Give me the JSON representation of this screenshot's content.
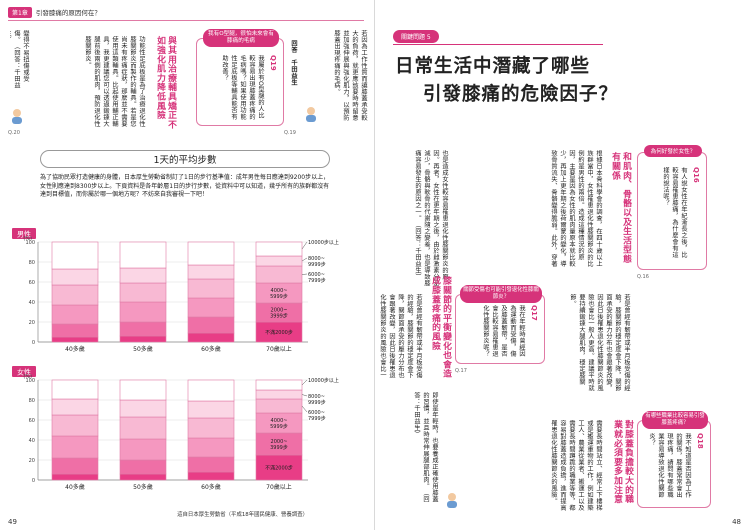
{
  "left_page": {
    "header_chapter": "第1章",
    "header_title": "引發膝痛的原因何在？",
    "page_number": "49",
    "tag_top": "Q.19",
    "tag_bottom": "Q.20",
    "col_top_right": "若因為工作性質而讓膝蓋承受較大的負荷，就更應該要時時留意並加強伸展與強化肌力，以預防膝蓋出現疼痛的毛病。",
    "col_top_left": "變得不易扭傷或受傷。（回答：千田益生）",
    "answerer": "回答　千田益生",
    "q19_box": {
      "bubble": "我有O型腿，很怕未來會有膝痛的毛病",
      "q_number": "Q19",
      "question": "我屬於有O型腿的人比較容易出現膝蓋疼痛的毛病嗎？如果使用功能性足底板等輔具能否有助改善？"
    },
    "reply_heading": "與其用治療輔具矯正不如強化肌力降低風險",
    "reply_body": "功能性足底板是為了治療退化性膝關節炎而製作的輔具。若是您尚未有疼痛症狀，那麼並不需要使用這類輔具。比起使用輔正輔具，我更建議您可以透過鍛鍊大腿前後兩側的肌肉，預防退化性膝關節炎。",
    "chart": {
      "title": "1天的平均步數",
      "description": "為了協助民眾打造健康的身體，日本厚生勞動省制訂了1日的步行基準值：成年男性每日應達到9200步以上，女性則應達到8300步以上。下頁資料是各年齡層1日的步行步數，從資料中可以知道，幾乎所有的族群都沒有達到目標值，而你屬於哪一個地方呢？不妨來自我審視一下吧！",
      "source": "這自日本厚生勞動省（平成18年國民健康、營養調査）",
      "legend": [
        "10000步以上",
        "8000~9999步",
        "6000~7999步",
        "4000~5999步",
        "2000~3999步",
        "不滿2000步"
      ]
    },
    "chart_data": [
      {
        "type": "bar",
        "title": "男性",
        "categories": [
          "40多歲",
          "50多歲",
          "60多歲",
          "70歲以上"
        ],
        "ylim": [
          0,
          100
        ],
        "y_ticks": [
          "0",
          "20",
          "40",
          "60",
          "80",
          "100"
        ],
        "stack_order_bottom_to_top": [
          "不滿2000步",
          "2000~3999步",
          "4000~5999步",
          "6000~7999步",
          "8000~9999步",
          "10000步以上"
        ],
        "series": [
          {
            "name": "不滿2000步",
            "values": [
              5,
              6,
              9,
              20
            ]
          },
          {
            "name": "2000~3999步",
            "values": [
              13,
              14,
              16,
              19
            ]
          },
          {
            "name": "4000~5999步",
            "values": [
              19,
              20,
              19,
              20
            ]
          },
          {
            "name": "6000~7999步",
            "values": [
              20,
              19,
              19,
              17
            ]
          },
          {
            "name": "8000~9999步",
            "values": [
              16,
              15,
              14,
              10
            ]
          },
          {
            "name": "10000步以上",
            "values": [
              27,
              26,
              23,
              14
            ]
          }
        ],
        "colors": [
          "#e83d86",
          "#ef6fa6",
          "#f598c0",
          "#f8b9d3",
          "#fbd6e5",
          "#ffffff"
        ]
      },
      {
        "type": "bar",
        "title": "女性",
        "categories": [
          "40多歲",
          "50多歲",
          "60多歲",
          "70歲以上"
        ],
        "ylim": [
          0,
          100
        ],
        "y_ticks": [
          "0",
          "20",
          "40",
          "60",
          "80",
          "100"
        ],
        "stack_order_bottom_to_top": [
          "不滿2000步",
          "2000~3999步",
          "4000~5999步",
          "6000~7999步",
          "8000~9999步",
          "10000步以上"
        ],
        "series": [
          {
            "name": "不滿2000步",
            "values": [
              6,
              6,
              8,
              25
            ]
          },
          {
            "name": "2000~3999步",
            "values": [
              16,
              14,
              15,
              22
            ]
          },
          {
            "name": "4000~5999步",
            "values": [
              22,
              21,
              19,
              20
            ]
          },
          {
            "name": "6000~7999步",
            "values": [
              21,
              22,
              20,
              14
            ]
          },
          {
            "name": "8000~9999步",
            "values": [
              16,
              17,
              17,
              9
            ]
          },
          {
            "name": "10000步以上",
            "values": [
              19,
              20,
              21,
              10
            ]
          }
        ],
        "colors": [
          "#e83d86",
          "#ef6fa6",
          "#f598c0",
          "#f8b9d3",
          "#fbd6e5",
          "#ffffff"
        ]
      }
    ]
  },
  "right_page": {
    "page_number": "48",
    "tag_q16": "Q.16",
    "tag_q17": "Q.17",
    "badge": "關鍵問題 5",
    "title_line1": "日常生活中潛藏了哪些",
    "title_line2": "引發膝痛的危險因子？",
    "q16_box": {
      "bubble": "為何好發於女性？",
      "q_number": "Q16",
      "question": "有人說女性在年紀漸長之後，比較容易罹患膝痛，為什麼會有這樣的說法呢？"
    },
    "section1_heading": "和肌肉、骨骼以及生活型態有關係",
    "section1_body": "根據日本骨科學會的調查，在四十歲以上族群當中，女性罹患退化性膝關節炎的比例約是男性的兩倍。造成這種情況的原因，主要是因為女性的肌肉量原本就比較少，再加上更年期之後荷爾蒙的變化，導致骨質流失、骨骼變得脆弱。此外，穿著高跟鞋等生活習慣，也會讓膝蓋承受額外的負擔。",
    "section1_cont": "也是造成女性較容易罹患退化性膝關節炎的原因。再者，女性在更年期之後，由於雌激素分泌減少，骨骼與軟骨的代謝隨之變差，也是導致膝痛容易發生的原因之一。（回答：千田益生）",
    "q17_box": {
      "bubble": "關節受傷也可能引發退化性膝關節炎？",
      "q_number": "Q17",
      "question": "我在年輕時曾經因為運動而受傷，傷及膝蓋韌帶，是否會比較容易罹患退化性膝關節炎呢？"
    },
    "section2_heading": "膝關節的平衡變化也會造成膝蓋疼痛的風險",
    "section2_body": "若是曾經有韌帶或半月板受傷的經驗，膝關節的穩定度會下降，關節面承受的壓力分布也會跟著改變，因此日後罹患退化性膝關節炎的風險也會比一般人更高。建議平時就要持續鍛鍊大腿肌肉，穩定膝關節。",
    "q18_box": {
      "bubble": "有哪些職業比較容易引發膝蓋疼痛？",
      "q_number": "Q18",
      "question": "我不知道是否因為工作的關係，膝蓋常常會出現疼痛，請問有哪些職業容易導致退化性關節炎？"
    },
    "section3_heading": "對膝蓋負擔較大的職業就必須要多加注意",
    "section3_body": "需要長時間站立、經常上下樓梯或是搬運重物的工作，例如建築工人、農業從業者、搬運工以及需要長時間蹲跪的職業等等，都容易對膝蓋造成負擔，進而提高罹患退化性膝關節炎的風險。",
    "section3_cont": "即使是年輕時，也要養成正確使用膝蓋的習慣，並且時常伸展腿部肌肉。（回答：千田益生）"
  }
}
